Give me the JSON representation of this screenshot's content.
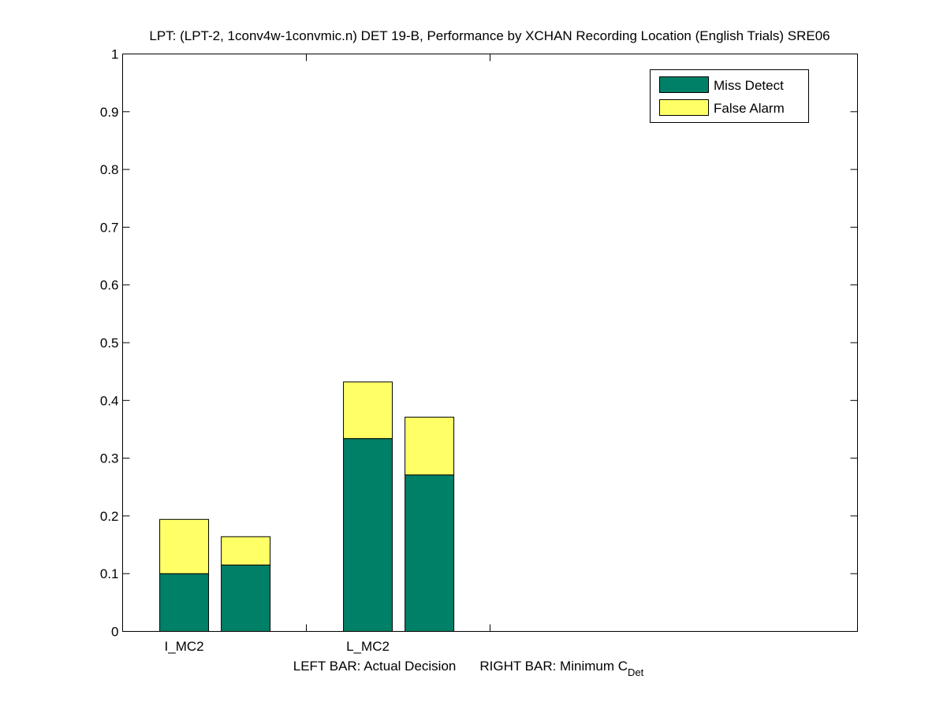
{
  "chart_data": {
    "type": "bar",
    "stacked": true,
    "title": "LPT: (LPT-2, 1conv4w-1convmic.n) DET 19-B,  Performance by XCHAN Recording Location (English Trials) SRE06",
    "xlabel_left": "LEFT BAR: Actual Decision",
    "xlabel_right": "RIGHT BAR: Minimum C",
    "xlabel_right_sub": "Det",
    "categories": [
      "I_MC2",
      "L_MC2"
    ],
    "bar_roles": [
      "Actual Decision",
      "Minimum C_Det"
    ],
    "series": [
      {
        "name": "Miss Detect",
        "color": "#008066",
        "values": [
          [
            0.1,
            0.115
          ],
          [
            0.334,
            0.271
          ]
        ]
      },
      {
        "name": "False Alarm",
        "color": "#ffff66",
        "values": [
          [
            0.094,
            0.049
          ],
          [
            0.098,
            0.1
          ]
        ]
      }
    ],
    "ylim": [
      0,
      1
    ],
    "xlim": [
      0,
      4
    ],
    "yticks": [
      "0",
      "0.1",
      "0.2",
      "0.3",
      "0.4",
      "0.5",
      "0.6",
      "0.7",
      "0.8",
      "0.9",
      "1"
    ],
    "xticks": [
      1,
      2
    ],
    "legend_position": "top-right",
    "grid": false
  }
}
